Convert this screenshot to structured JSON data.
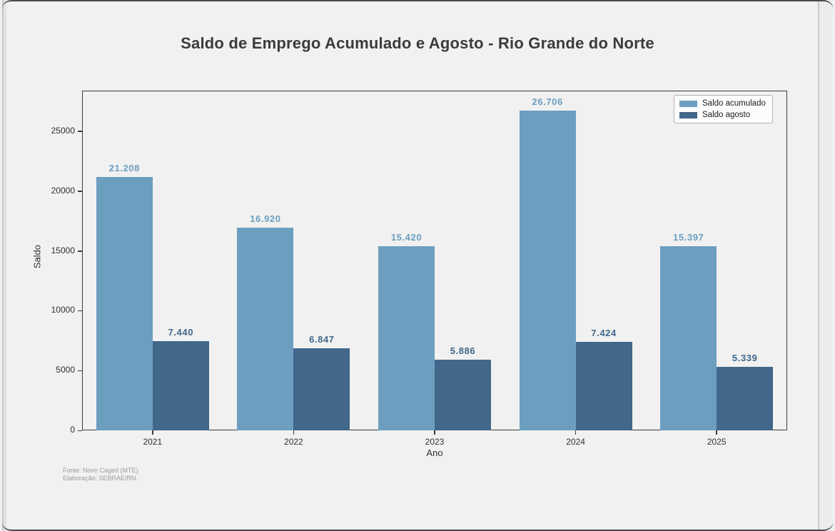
{
  "window": {
    "background": "#f0f1f0"
  },
  "chart_data": {
    "type": "bar",
    "title": "Saldo de Emprego Acumulado e Agosto - Rio Grande do Norte",
    "xlabel": "Ano",
    "ylabel": "Saldo",
    "categories": [
      "2021",
      "2022",
      "2023",
      "2024",
      "2025"
    ],
    "series": [
      {
        "name": "Saldo acumulado",
        "color": "#6c9ec0",
        "values": [
          21208,
          16920,
          15420,
          26706,
          15397
        ],
        "labels": [
          "21.208",
          "16.920",
          "15.420",
          "26.706",
          "15.397"
        ]
      },
      {
        "name": "Saldo agosto",
        "color": "#41678a",
        "values": [
          7440,
          6847,
          5886,
          7424,
          5339
        ],
        "labels": [
          "7.440",
          "6.847",
          "5.886",
          "7.424",
          "5.339"
        ]
      }
    ],
    "ylim": [
      0,
      28400
    ],
    "yticks": [
      0,
      5000,
      10000,
      15000,
      20000,
      25000
    ],
    "ytick_labels": [
      "0",
      "5000",
      "10000",
      "15000",
      "20000",
      "25000"
    ],
    "grid": false,
    "legend_position": "upper right"
  },
  "footer": {
    "source_line": "Fonte: Novo Caged (MTE).",
    "elaboration_line": "Elaboração: SEBRAE/RN."
  }
}
